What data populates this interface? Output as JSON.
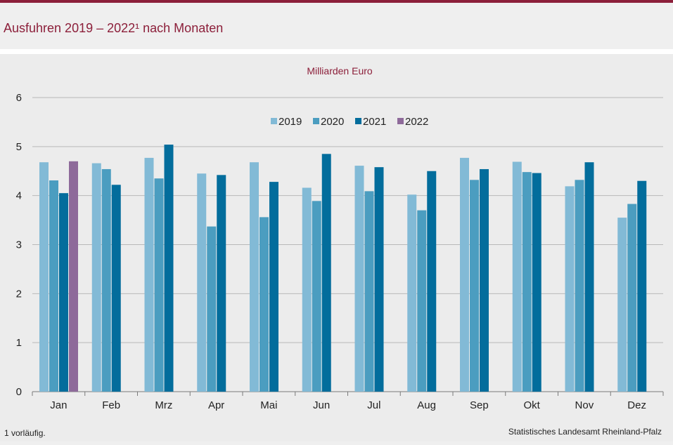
{
  "header": {
    "title": "Ausfuhren 2019 – 2022¹ nach Monaten"
  },
  "colors": {
    "accent": "#8c1f3a",
    "series": [
      "#82bad6",
      "#4b9dc0",
      "#036d9c",
      "#8e6a9a"
    ]
  },
  "chart_data": {
    "type": "bar",
    "unit_label": "Milliarden Euro",
    "categories": [
      "Jan",
      "Feb",
      "Mrz",
      "Apr",
      "Mai",
      "Jun",
      "Jul",
      "Aug",
      "Sep",
      "Okt",
      "Nov",
      "Dez"
    ],
    "series": [
      {
        "name": "2019",
        "values": [
          4.68,
          4.66,
          4.77,
          4.45,
          4.68,
          4.16,
          4.61,
          4.02,
          4.77,
          4.69,
          4.19,
          3.55
        ]
      },
      {
        "name": "2020",
        "values": [
          4.31,
          4.54,
          4.35,
          3.37,
          3.56,
          3.89,
          4.09,
          3.7,
          4.32,
          4.48,
          4.32,
          3.83
        ]
      },
      {
        "name": "2021",
        "values": [
          4.05,
          4.22,
          5.04,
          4.42,
          4.28,
          4.85,
          4.58,
          4.5,
          4.54,
          4.46,
          4.68,
          4.3
        ]
      },
      {
        "name": "2022",
        "values": [
          4.7,
          null,
          null,
          null,
          null,
          null,
          null,
          null,
          null,
          null,
          null,
          null
        ]
      }
    ],
    "yticks": [
      "0",
      "1",
      "2",
      "3",
      "4",
      "5",
      "6"
    ],
    "ylim": [
      0,
      6
    ],
    "grid": true,
    "legend": "top-center"
  },
  "footer": {
    "footnote": "1 vorläufig.",
    "source": "Statistisches Landesamt Rheinland-Pfalz"
  }
}
